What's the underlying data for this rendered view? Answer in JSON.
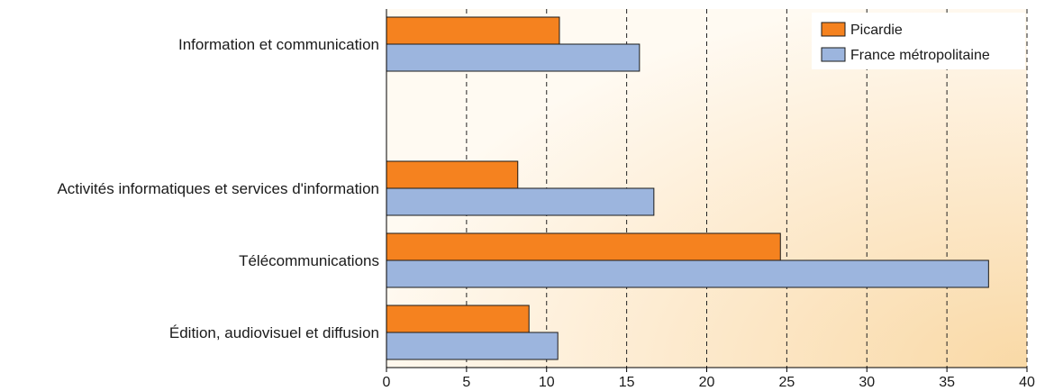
{
  "chart_data": {
    "type": "bar",
    "orientation": "horizontal",
    "title": "",
    "xlabel": "",
    "ylabel": "",
    "categories": [
      "Information et communication",
      "Activités informatiques et services d'information",
      "Télécommunications",
      "Édition, audiovisuel et diffusion"
    ],
    "series": [
      {
        "name": "Picardie",
        "color": "#f5821f",
        "values": [
          10.8,
          8.2,
          24.6,
          8.9
        ]
      },
      {
        "name": "France métropolitaine",
        "color": "#9cb5de",
        "values": [
          15.8,
          16.7,
          37.6,
          10.7
        ]
      }
    ],
    "xlim": [
      0,
      40
    ],
    "xticks": [
      "0",
      "5",
      "10",
      "15",
      "20",
      "25",
      "30",
      "35",
      "40"
    ],
    "grid": "vertical-dashed",
    "legend_position": "top-right"
  }
}
